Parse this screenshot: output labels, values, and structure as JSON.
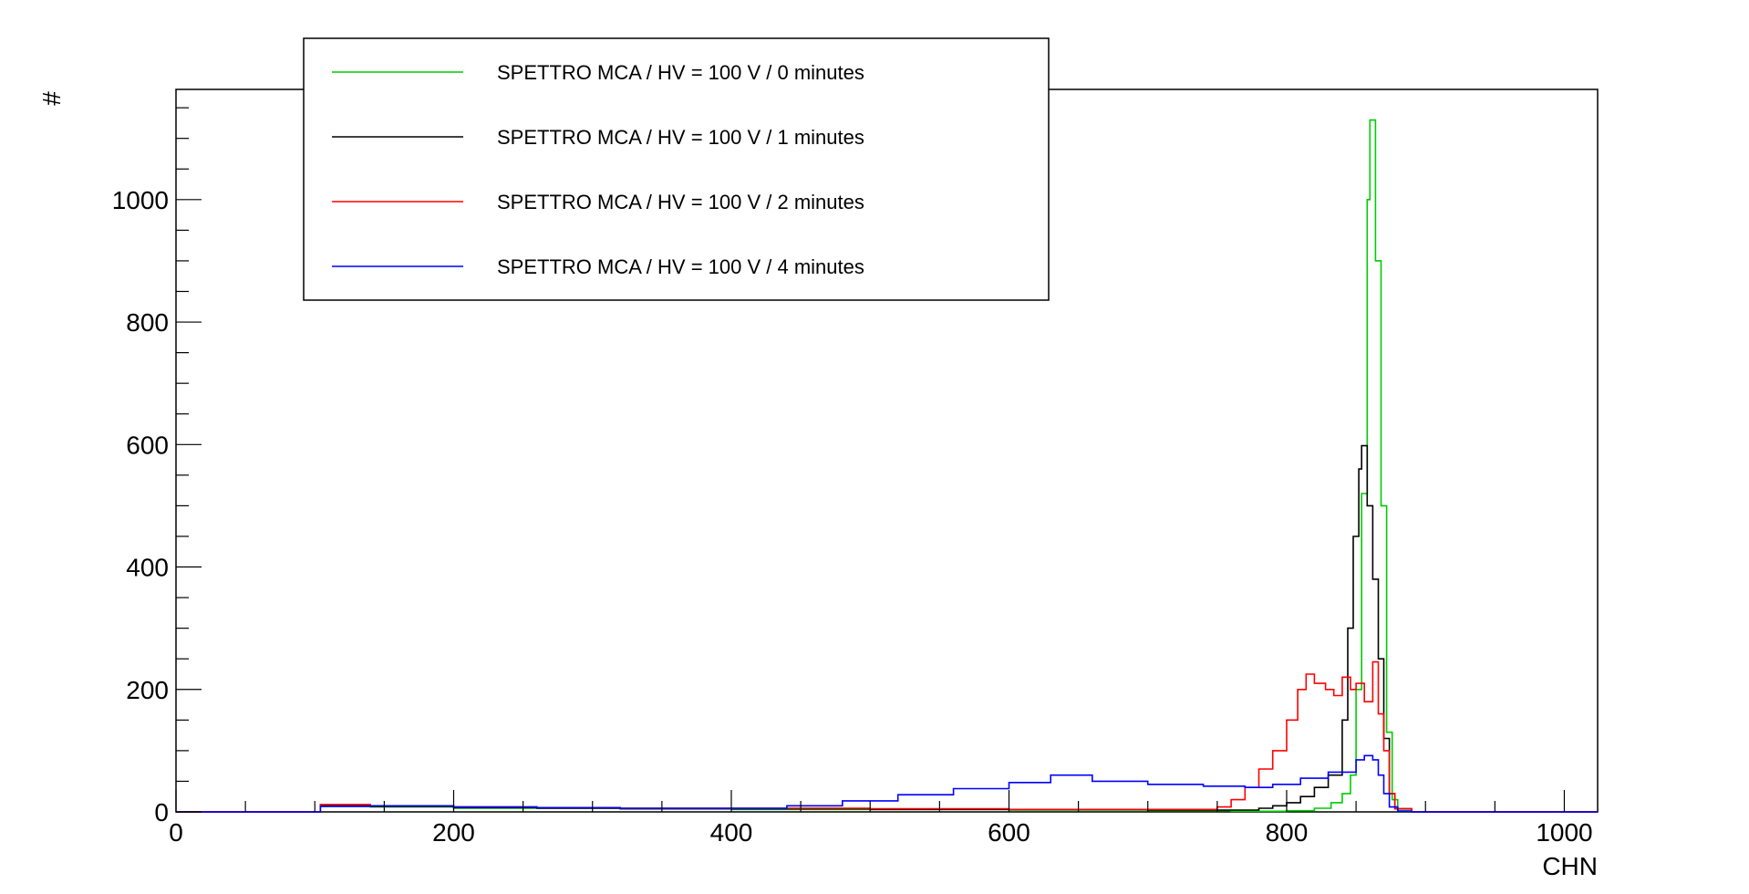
{
  "chart_data": {
    "type": "histogram",
    "title": "",
    "xlabel": "CHN",
    "ylabel": "#",
    "xlim": [
      0,
      1024
    ],
    "ylim": [
      0,
      1180
    ],
    "x_ticks": [
      0,
      200,
      400,
      600,
      800,
      1000
    ],
    "y_ticks": [
      0,
      200,
      400,
      600,
      800,
      1000
    ],
    "x_tick_labels": [
      "0",
      "200",
      "400",
      "600",
      "800",
      "1000"
    ],
    "y_tick_labels": [
      "0",
      "200",
      "400",
      "600",
      "800",
      "1000"
    ],
    "grid": false,
    "legend_position": "top-left",
    "series": [
      {
        "name": "SPETTRO MCA / HV = 100 V / 0 minutes",
        "color": "#00cc00",
        "points": [
          [
            0,
            0
          ],
          [
            100,
            0
          ],
          [
            104,
            9
          ],
          [
            140,
            8
          ],
          [
            200,
            6
          ],
          [
            260,
            6
          ],
          [
            320,
            5
          ],
          [
            400,
            4
          ],
          [
            500,
            4
          ],
          [
            600,
            3
          ],
          [
            700,
            2
          ],
          [
            760,
            1
          ],
          [
            800,
            2
          ],
          [
            820,
            6
          ],
          [
            832,
            15
          ],
          [
            840,
            30
          ],
          [
            846,
            60
          ],
          [
            850,
            200
          ],
          [
            854,
            520
          ],
          [
            858,
            1000
          ],
          [
            860,
            1130
          ],
          [
            864,
            900
          ],
          [
            868,
            500
          ],
          [
            872,
            130
          ],
          [
            876,
            20
          ],
          [
            880,
            2
          ],
          [
            890,
            0
          ],
          [
            1024,
            0
          ]
        ]
      },
      {
        "name": "SPETTRO MCA / HV = 100 V / 1 minutes",
        "color": "#000000",
        "points": [
          [
            0,
            0
          ],
          [
            100,
            0
          ],
          [
            104,
            10
          ],
          [
            140,
            9
          ],
          [
            200,
            7
          ],
          [
            260,
            6
          ],
          [
            320,
            5
          ],
          [
            400,
            5
          ],
          [
            500,
            4
          ],
          [
            600,
            4
          ],
          [
            700,
            3
          ],
          [
            760,
            3
          ],
          [
            780,
            6
          ],
          [
            790,
            10
          ],
          [
            800,
            15
          ],
          [
            810,
            25
          ],
          [
            820,
            40
          ],
          [
            830,
            60
          ],
          [
            840,
            150
          ],
          [
            844,
            300
          ],
          [
            848,
            450
          ],
          [
            852,
            560
          ],
          [
            854,
            598
          ],
          [
            858,
            500
          ],
          [
            862,
            380
          ],
          [
            866,
            250
          ],
          [
            870,
            120
          ],
          [
            874,
            30
          ],
          [
            878,
            5
          ],
          [
            890,
            0
          ],
          [
            1024,
            0
          ]
        ]
      },
      {
        "name": "SPETTRO MCA / HV = 100 V / 2 minutes",
        "color": "#ff0000",
        "points": [
          [
            0,
            0
          ],
          [
            100,
            0
          ],
          [
            104,
            12
          ],
          [
            140,
            10
          ],
          [
            200,
            8
          ],
          [
            260,
            7
          ],
          [
            320,
            6
          ],
          [
            400,
            6
          ],
          [
            500,
            5
          ],
          [
            600,
            4
          ],
          [
            680,
            4
          ],
          [
            720,
            4
          ],
          [
            750,
            8
          ],
          [
            760,
            20
          ],
          [
            770,
            40
          ],
          [
            780,
            70
          ],
          [
            790,
            100
          ],
          [
            800,
            150
          ],
          [
            808,
            200
          ],
          [
            814,
            225
          ],
          [
            820,
            210
          ],
          [
            828,
            200
          ],
          [
            834,
            190
          ],
          [
            840,
            220
          ],
          [
            846,
            200
          ],
          [
            850,
            210
          ],
          [
            856,
            180
          ],
          [
            862,
            245
          ],
          [
            866,
            160
          ],
          [
            870,
            100
          ],
          [
            874,
            30
          ],
          [
            878,
            5
          ],
          [
            890,
            0
          ],
          [
            1024,
            0
          ]
        ]
      },
      {
        "name": "SPETTRO MCA / HV = 100 V / 4 minutes",
        "color": "#0000ff",
        "points": [
          [
            0,
            0
          ],
          [
            100,
            0
          ],
          [
            104,
            9
          ],
          [
            140,
            10
          ],
          [
            200,
            8
          ],
          [
            260,
            7
          ],
          [
            320,
            6
          ],
          [
            400,
            6
          ],
          [
            440,
            10
          ],
          [
            480,
            18
          ],
          [
            520,
            28
          ],
          [
            560,
            38
          ],
          [
            600,
            48
          ],
          [
            630,
            60
          ],
          [
            660,
            50
          ],
          [
            700,
            45
          ],
          [
            740,
            42
          ],
          [
            770,
            40
          ],
          [
            790,
            45
          ],
          [
            810,
            55
          ],
          [
            830,
            65
          ],
          [
            850,
            85
          ],
          [
            856,
            92
          ],
          [
            862,
            85
          ],
          [
            866,
            60
          ],
          [
            870,
            30
          ],
          [
            874,
            8
          ],
          [
            880,
            1
          ],
          [
            890,
            0
          ],
          [
            1024,
            0
          ]
        ]
      }
    ]
  }
}
